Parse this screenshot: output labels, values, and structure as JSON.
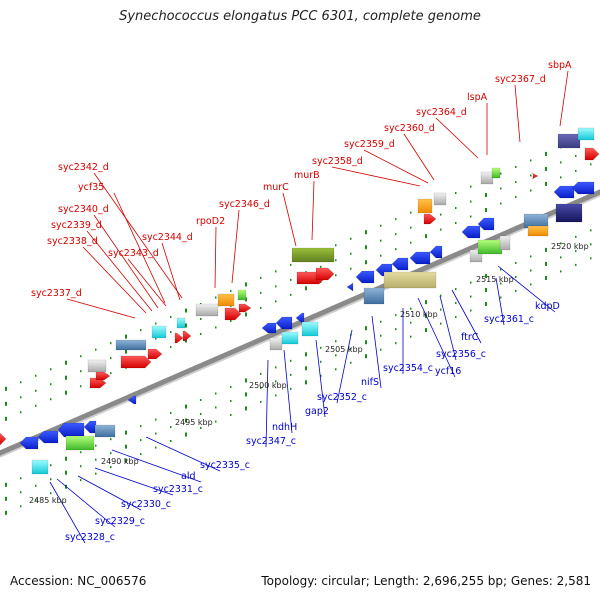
{
  "title": "Synechococcus elongatus PCC 6301, complete genome",
  "footer": {
    "accession": "Accession: NC_006576",
    "topology": "Topology: circular; Length: 2,696,255 bp; Genes: 2,581"
  },
  "colors": {
    "forward_label": "#d40000",
    "reverse_label": "#0000cc",
    "backbone": "#8a8a8a",
    "tick": "#1d8a1d"
  },
  "kbp_labels": [
    "2485 kbp",
    "2490 kbp",
    "2495 kbp",
    "2500 kbp",
    "2505 kbp",
    "2510 kbp",
    "2515 kbp",
    "2520 kbp"
  ],
  "forward_genes": [
    "syc2337_d",
    "syc2338_d",
    "syc2339_d",
    "syc2340_d",
    "ycf35",
    "syc2342_d",
    "syc2343_d",
    "syc2344_d",
    "rpoD2",
    "syc2346_d",
    "murC",
    "murB",
    "syc2358_d",
    "syc2359_d",
    "syc2360_d",
    "syc2364_d",
    "lspA",
    "syc2367_d",
    "sbpA"
  ],
  "reverse_genes": [
    "syc2328_c",
    "syc2329_c",
    "syc2330_c",
    "syc2331_c",
    "ald",
    "syc2335_c",
    "syc2347_c",
    "ndhH",
    "gap2",
    "syc2352_c",
    "nifS",
    "syc2354_c",
    "ycf16",
    "syc2356_c",
    "ftrC",
    "syc2361_c",
    "kdpD"
  ]
}
